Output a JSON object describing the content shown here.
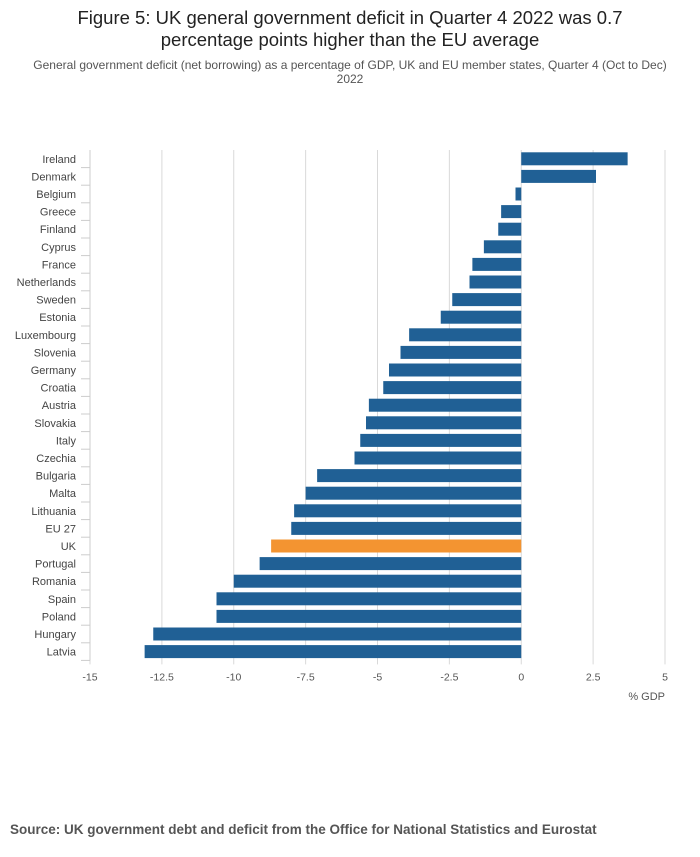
{
  "title": "Figure 5: UK general government deficit in Quarter 4 2022 was 0.7 percentage points higher than the EU average",
  "subtitle": "General government deficit (net borrowing) as a percentage of GDP, UK and EU member states, Quarter 4 (Oct to Dec) 2022",
  "source": "Source: UK government debt and deficit from the Office for National Statistics and Eurostat",
  "colors": {
    "bar": "#206095",
    "highlight": "#f39431",
    "grid": "#d9d9d9",
    "axis": "#cccccc"
  },
  "chart_data": {
    "type": "bar",
    "orientation": "horizontal",
    "categories": [
      "Ireland",
      "Denmark",
      "Belgium",
      "Greece",
      "Finland",
      "Cyprus",
      "France",
      "Netherlands",
      "Sweden",
      "Estonia",
      "Luxembourg",
      "Slovenia",
      "Germany",
      "Croatia",
      "Austria",
      "Slovakia",
      "Italy",
      "Czechia",
      "Bulgaria",
      "Malta",
      "Lithuania",
      "EU 27",
      "UK",
      "Portugal",
      "Romania",
      "Spain",
      "Poland",
      "Hungary",
      "Latvia"
    ],
    "values": [
      3.7,
      2.6,
      -0.2,
      -0.7,
      -0.8,
      -1.3,
      -1.7,
      -1.8,
      -2.4,
      -2.8,
      -3.9,
      -4.2,
      -4.6,
      -4.8,
      -5.3,
      -5.4,
      -5.6,
      -5.8,
      -7.1,
      -7.5,
      -7.9,
      -8.0,
      -8.7,
      -9.1,
      -10.0,
      -10.6,
      -10.6,
      -12.8,
      -13.1
    ],
    "highlight": "UK",
    "xlabel": "% GDP",
    "xlim": [
      -15,
      5
    ],
    "xticks": [
      -15,
      -12.5,
      -10,
      -7.5,
      -5,
      -2.5,
      0,
      2.5,
      5
    ],
    "xtick_labels": [
      "-15",
      "-12.5",
      "-10",
      "-7.5",
      "-5",
      "-2.5",
      "0",
      "2.5",
      "5"
    ]
  }
}
